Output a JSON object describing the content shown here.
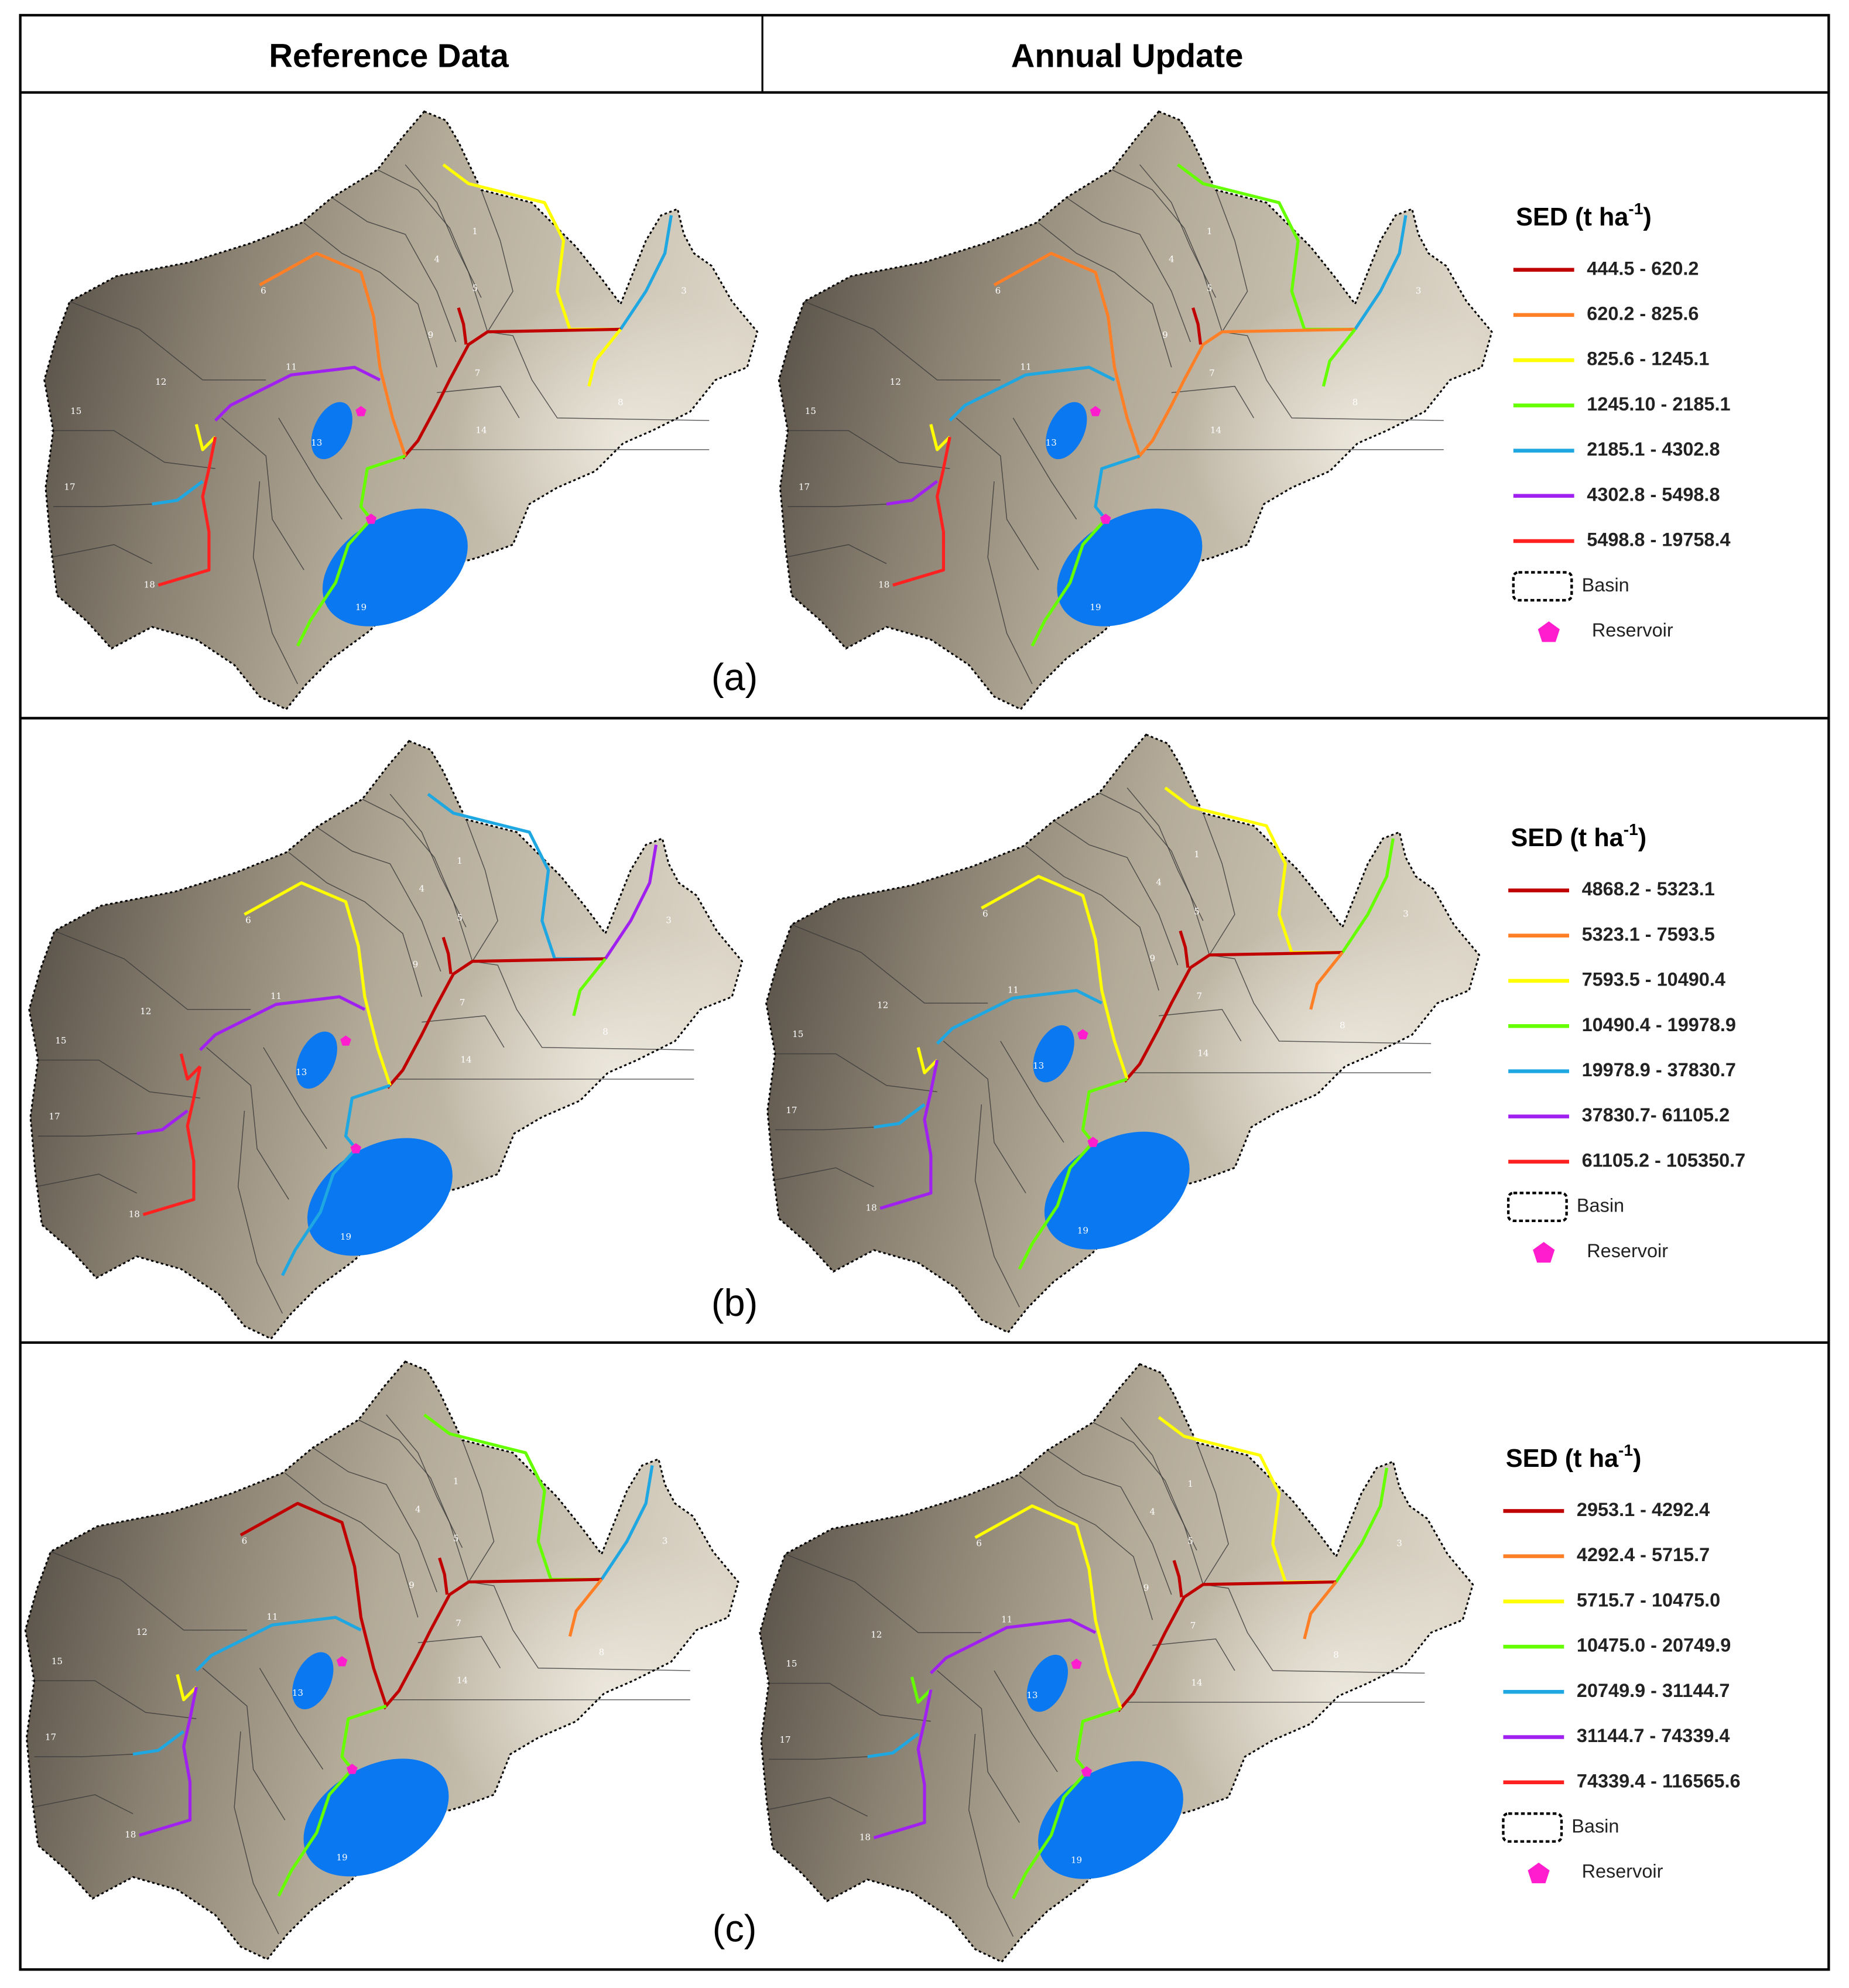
{
  "header": {
    "columns": [
      "Reference Data",
      "Annual Update"
    ]
  },
  "subbasin_labels": [
    "1",
    "3",
    "4",
    "5",
    "6",
    "7",
    "8",
    "9",
    "11",
    "12",
    "13",
    "14",
    "15",
    "16",
    "17",
    "18",
    "19"
  ],
  "panels": [
    {
      "label": "(a)",
      "legend": {
        "title": {
          "text": "SED (t ha",
          "superscript": "-1",
          "suffix": ")"
        },
        "classes": [
          "444.5 - 620.2",
          "620.2 - 825.6",
          "825.6 - 1245.1",
          "1245.10 - 2185.1",
          "2185.1 - 4302.8",
          "4302.8 - 5498.8",
          "5498.8 - 19758.4"
        ],
        "basin": "Basin",
        "reservoir": "Reservoir"
      }
    },
    {
      "label": "(b)",
      "legend": {
        "title": {
          "text": "SED (t ha",
          "superscript": "-1",
          "suffix": ")"
        },
        "classes": [
          "4868.2 - 5323.1",
          "5323.1 - 7593.5",
          "7593.5 - 10490.4",
          "10490.4 - 19978.9",
          "19978.9 - 37830.7",
          "37830.7- 61105.2",
          "61105.2 - 105350.7"
        ],
        "basin": "Basin",
        "reservoir": "Reservoir"
      }
    },
    {
      "label": "(c)",
      "legend": {
        "title": {
          "text": "SED (t ha",
          "superscript": "-1",
          "suffix": ")"
        },
        "classes": [
          "2953.1 - 4292.4",
          "4292.4 - 5715.7",
          "5715.7 - 10475.0",
          "10475.0 - 20749.9",
          "20749.9 - 31144.7",
          "31144.7 - 74339.4",
          "74339.4 - 116565.6"
        ],
        "basin": "Basin",
        "reservoir": "Reservoir"
      }
    }
  ]
}
